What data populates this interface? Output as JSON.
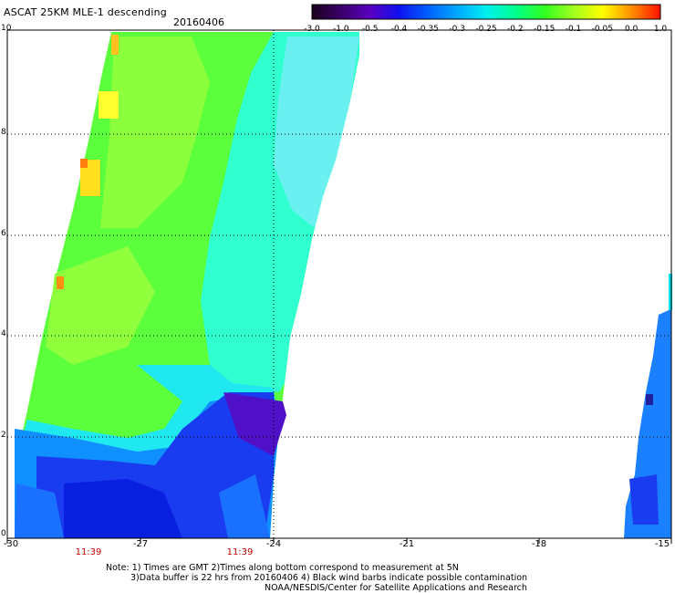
{
  "header": {
    "title": "ASCAT 25KM MLE-1 descending",
    "date": "20160406"
  },
  "colorbar": {
    "labels": [
      "-3.0",
      "-1.0",
      "-0.5",
      "-0.4",
      "-0.35",
      "-0.3",
      "-0.25",
      "-0.2",
      "-0.15",
      "-0.1",
      "-0.05",
      "0.0",
      "1.0"
    ],
    "colors": [
      "#1a001a",
      "#3a006a",
      "#5a00c0",
      "#1010f0",
      "#0060ff",
      "#00a8ff",
      "#00f0f0",
      "#00ff90",
      "#30ff20",
      "#a0ff20",
      "#ffff00",
      "#ff9000",
      "#ff1000"
    ]
  },
  "axes": {
    "x_ticks": [
      "-30",
      "-27",
      "-24",
      "-21",
      "-18",
      "-15"
    ],
    "y_ticks": [
      "0",
      "2",
      "4",
      "6",
      "8",
      "10"
    ],
    "gridlines": "dotted"
  },
  "times": [
    "11:39",
    "11:39"
  ],
  "notes": [
    "Note: 1) Times are GMT 2)Times along bottom correspond to measurement at 5N",
    "3)Data buffer is 22 hrs from 20160406 4) Black wind barbs indicate possible contamination",
    "NOAA/NESDIS/Center for Satellite Applications and Research"
  ]
}
